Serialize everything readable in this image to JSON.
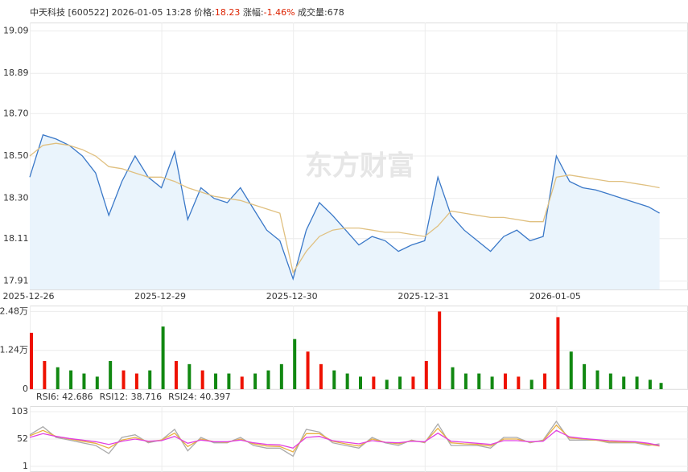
{
  "header": {
    "segments": [
      {
        "text": "中天科技 [600522]  2026-01-05 13:28  价格:",
        "color": "#333333"
      },
      {
        "text": "18.23",
        "color": "#dd2200"
      },
      {
        "text": "  涨幅:",
        "color": "#333333"
      },
      {
        "text": "-1.46%",
        "color": "#dd2200"
      },
      {
        "text": "  成交量:678",
        "color": "#333333"
      }
    ]
  },
  "watermark": "东方财富",
  "chart_data": [
    {
      "type": "line",
      "x": [
        0,
        24,
        48,
        72,
        96,
        120,
        144,
        168,
        192,
        216,
        240,
        264,
        288,
        312,
        336,
        360,
        384,
        408,
        432,
        456,
        480,
        504,
        528,
        552,
        576,
        600,
        624,
        648,
        672,
        696,
        720,
        744,
        768,
        792,
        816,
        840,
        864,
        888,
        912,
        936,
        960,
        984,
        1008,
        1032,
        1056,
        1080,
        1104,
        1128,
        1148
      ],
      "xlim": [
        0,
        1200
      ],
      "xticks": [
        {
          "value": 0,
          "label": "2025-12-26"
        },
        {
          "value": 240,
          "label": "2025-12-29"
        },
        {
          "value": 480,
          "label": "2025-12-30"
        },
        {
          "value": 720,
          "label": "2025-12-31"
        },
        {
          "value": 960,
          "label": "2026-01-05"
        }
      ],
      "ylim": [
        17.87,
        19.13
      ],
      "yticks": [
        19.09,
        18.89,
        {
          "value": 18.7,
          "label": "18.70"
        },
        {
          "value": 18.5,
          "label": "18.50"
        },
        {
          "value": 18.3,
          "label": "18.30"
        },
        18.11,
        17.91
      ],
      "ytick_colors": [
        "#dd2200",
        "#dd2200",
        "#dd2200",
        "#333333",
        "#008800",
        "#008800",
        "#008800"
      ],
      "grid": true,
      "series": [
        {
          "color": "#3a78c8",
          "fill": "#eaf4fc",
          "values": [
            18.4,
            18.6,
            18.58,
            18.55,
            18.5,
            18.42,
            18.22,
            18.38,
            18.5,
            18.4,
            18.35,
            18.52,
            18.2,
            18.35,
            18.3,
            18.28,
            18.35,
            18.25,
            18.15,
            18.1,
            17.92,
            18.15,
            18.28,
            18.22,
            18.15,
            18.08,
            18.12,
            18.1,
            18.05,
            18.08,
            18.1,
            18.4,
            18.22,
            18.15,
            18.1,
            18.05,
            18.12,
            18.15,
            18.1,
            18.12,
            18.5,
            18.38,
            18.35,
            18.34,
            18.32,
            18.3,
            18.28,
            18.26,
            18.23
          ]
        },
        {
          "color": "#e0c080",
          "values": [
            18.5,
            18.55,
            18.56,
            18.55,
            18.53,
            18.5,
            18.45,
            18.44,
            18.42,
            18.4,
            18.4,
            18.38,
            18.35,
            18.33,
            18.31,
            18.3,
            18.29,
            18.27,
            18.25,
            18.23,
            17.95,
            18.05,
            18.12,
            18.15,
            18.16,
            18.16,
            18.15,
            18.14,
            18.14,
            18.13,
            18.12,
            18.17,
            18.24,
            18.23,
            18.22,
            18.21,
            18.21,
            18.2,
            18.19,
            18.19,
            18.4,
            18.41,
            18.4,
            18.39,
            18.38,
            18.38,
            18.37,
            18.36,
            18.35
          ]
        }
      ]
    },
    {
      "type": "bar",
      "x": [
        0,
        24,
        48,
        72,
        96,
        120,
        144,
        168,
        192,
        216,
        240,
        264,
        288,
        312,
        336,
        360,
        384,
        408,
        432,
        456,
        480,
        504,
        528,
        552,
        576,
        600,
        624,
        648,
        672,
        696,
        720,
        744,
        768,
        792,
        816,
        840,
        864,
        888,
        912,
        936,
        960,
        984,
        1008,
        1032,
        1056,
        1080,
        1104,
        1128,
        1148
      ],
      "xlim": [
        0,
        1200
      ],
      "ylim": [
        0,
        26700
      ],
      "yticks": [
        {
          "value": 24800,
          "label": "2.48万"
        },
        {
          "value": 12400,
          "label": "1.24万"
        },
        0
      ],
      "up_color": "#ee1100",
      "down_color": "#118811",
      "values": [
        18000,
        9000,
        7000,
        6000,
        5000,
        4000,
        9000,
        6000,
        5000,
        6000,
        20000,
        9000,
        8000,
        6000,
        5000,
        5000,
        4000,
        5000,
        6000,
        8000,
        16000,
        12000,
        8000,
        6000,
        5000,
        4000,
        4000,
        3000,
        4000,
        4000,
        9000,
        24800,
        7000,
        5000,
        5000,
        4000,
        5000,
        4000,
        3000,
        5000,
        23000,
        12000,
        8000,
        6000,
        5000,
        4000,
        4000,
        3000,
        2000
      ]
    },
    {
      "type": "line",
      "x": [
        0,
        24,
        48,
        72,
        96,
        120,
        144,
        168,
        192,
        216,
        240,
        264,
        288,
        312,
        336,
        360,
        384,
        408,
        432,
        456,
        480,
        504,
        528,
        552,
        576,
        600,
        624,
        648,
        672,
        696,
        720,
        744,
        768,
        792,
        816,
        840,
        864,
        888,
        912,
        936,
        960,
        984,
        1008,
        1032,
        1056,
        1080,
        1104,
        1128,
        1148
      ],
      "xlim": [
        0,
        1200
      ],
      "ylim": [
        -9.5,
        113.5
      ],
      "yticks": [
        103,
        52,
        1
      ],
      "series": [
        {
          "name": "RSI6: 42.686",
          "color": "#aaaaaa",
          "values": [
            60,
            75,
            55,
            50,
            45,
            40,
            25,
            55,
            60,
            45,
            50,
            70,
            30,
            55,
            45,
            45,
            55,
            40,
            35,
            35,
            20,
            70,
            65,
            45,
            40,
            35,
            55,
            45,
            40,
            50,
            45,
            80,
            40,
            40,
            40,
            35,
            55,
            55,
            45,
            50,
            85,
            50,
            50,
            50,
            45,
            45,
            45,
            40,
            43
          ]
        },
        {
          "name": "RSI12: 38.716",
          "color": "#e8b040",
          "values": [
            58,
            68,
            57,
            52,
            48,
            44,
            35,
            50,
            55,
            47,
            50,
            63,
            38,
            52,
            47,
            46,
            52,
            43,
            39,
            38,
            28,
            62,
            62,
            48,
            43,
            39,
            52,
            46,
            43,
            49,
            46,
            72,
            45,
            43,
            42,
            39,
            52,
            52,
            46,
            49,
            78,
            54,
            52,
            50,
            47,
            46,
            46,
            42,
            39
          ]
        },
        {
          "name": "RSI24: 40.397",
          "color": "#e040e0",
          "values": [
            55,
            62,
            57,
            53,
            50,
            47,
            42,
            48,
            52,
            48,
            49,
            57,
            44,
            50,
            47,
            47,
            50,
            45,
            42,
            41,
            35,
            55,
            57,
            49,
            46,
            43,
            49,
            46,
            45,
            48,
            47,
            63,
            48,
            46,
            44,
            42,
            49,
            49,
            47,
            48,
            68,
            56,
            53,
            51,
            49,
            48,
            47,
            44,
            40
          ]
        }
      ]
    }
  ]
}
